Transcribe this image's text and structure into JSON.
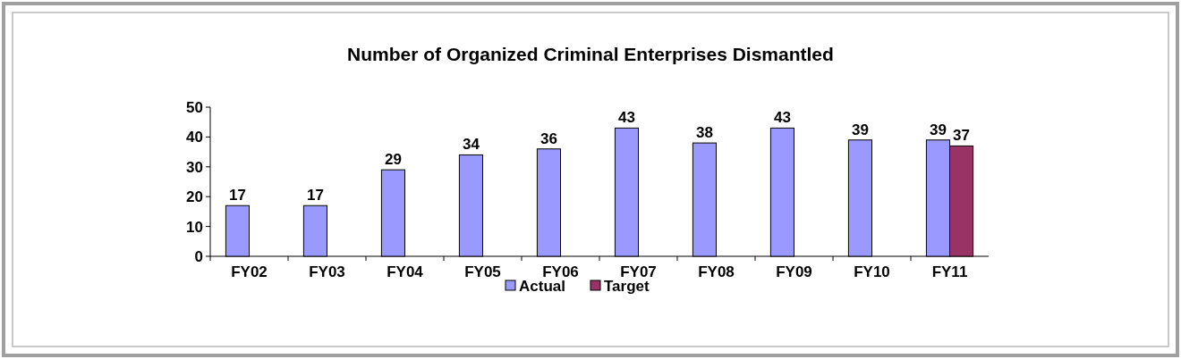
{
  "chart_data": {
    "type": "bar",
    "title": "Number of Organized Criminal Enterprises Dismantled",
    "categories": [
      "FY02",
      "FY03",
      "FY04",
      "FY05",
      "FY06",
      "FY07",
      "FY08",
      "FY09",
      "FY10",
      "FY11"
    ],
    "series": [
      {
        "name": "Actual",
        "color": "#9999ff",
        "values": [
          17,
          17,
          29,
          34,
          36,
          43,
          38,
          43,
          39,
          39
        ]
      },
      {
        "name": "Target",
        "color": "#993366",
        "values": [
          null,
          null,
          null,
          null,
          null,
          null,
          null,
          null,
          null,
          37
        ]
      }
    ],
    "ylim": [
      0,
      50
    ],
    "yticks": [
      0,
      10,
      20,
      30,
      40,
      50
    ],
    "data_labels": true,
    "legend": "bottom",
    "grid": false
  }
}
